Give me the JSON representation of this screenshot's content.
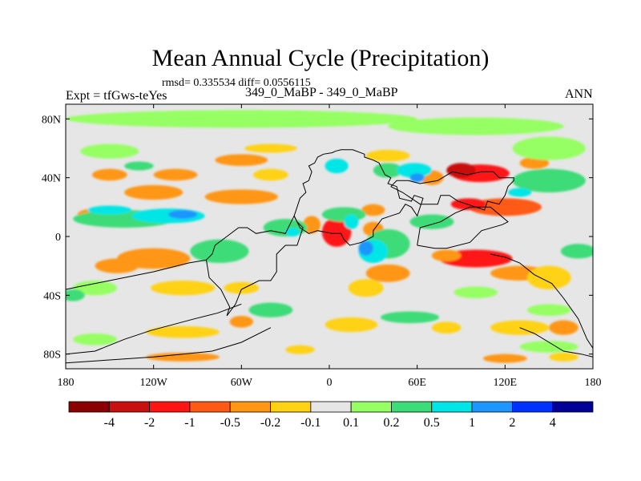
{
  "chart_data": {
    "type": "heatmap",
    "title": "Mean Annual Cycle (Precipitation)",
    "subtitle_stats": "rmsd= 0.335534 diff= 0.0556115",
    "cases": "349_0_MaBP - 349_0_MaBP",
    "experiment": "Expt = tfGws-teYes",
    "season": "ANN",
    "x_axis": {
      "range": [
        -180,
        180
      ],
      "ticks": [
        -180,
        -120,
        -60,
        0,
        60,
        120,
        180
      ],
      "tick_labels": [
        "180",
        "120W",
        "60W",
        "0",
        "60E",
        "120E",
        "180"
      ]
    },
    "y_axis": {
      "range": [
        -90,
        90
      ],
      "ticks": [
        80,
        40,
        0,
        -40,
        -80
      ],
      "tick_labels": [
        "80N",
        "40N",
        "0",
        "40S",
        "80S"
      ]
    },
    "colorbar": {
      "levels": [
        "-4",
        "-2",
        "-1",
        "-0.5",
        "-0.2",
        "-0.1",
        "0.1",
        "0.2",
        "0.5",
        "1",
        "2",
        "4"
      ],
      "colors": [
        "#8b0000",
        "#c81010",
        "#ff1414",
        "#ff5a14",
        "#ff9614",
        "#ffd214",
        "#e6e6e6",
        "#96ff64",
        "#3cdc78",
        "#00e6e6",
        "#1e96ff",
        "#0032ff",
        "#000096"
      ]
    },
    "field_blobs": [
      {
        "lon": 103,
        "lat": 43,
        "rx": 20,
        "ry": 6,
        "value": -1.5
      },
      {
        "lon": 90,
        "lat": 45,
        "rx": 10,
        "ry": 5,
        "value": -3
      },
      {
        "lon": 70,
        "lat": 40,
        "rx": 8,
        "ry": 5,
        "value": -0.5
      },
      {
        "lon": 120,
        "lat": 20,
        "rx": 25,
        "ry": 6,
        "value": -0.6
      },
      {
        "lon": 95,
        "lat": 22,
        "rx": 12,
        "ry": 4,
        "value": -1.2
      },
      {
        "lon": 5,
        "lat": 3,
        "rx": 10,
        "ry": 10,
        "value": -1.5
      },
      {
        "lon": -12,
        "lat": 8,
        "rx": 6,
        "ry": 6,
        "value": -0.5
      },
      {
        "lon": 30,
        "lat": 5,
        "rx": 7,
        "ry": 5,
        "value": -0.5
      },
      {
        "lon": 100,
        "lat": -15,
        "rx": 25,
        "ry": 6,
        "value": -1.3
      },
      {
        "lon": 80,
        "lat": -13,
        "rx": 10,
        "ry": 4,
        "value": -0.5
      },
      {
        "lon": 130,
        "lat": -25,
        "rx": 20,
        "ry": 5,
        "value": -0.5
      },
      {
        "lon": 150,
        "lat": -28,
        "rx": 15,
        "ry": 8,
        "value": -0.15
      },
      {
        "lon": 40,
        "lat": -25,
        "rx": 15,
        "ry": 6,
        "value": -0.5
      },
      {
        "lon": 25,
        "lat": -35,
        "rx": 12,
        "ry": 6,
        "value": -0.15
      },
      {
        "lon": -120,
        "lat": -15,
        "rx": 25,
        "ry": 7,
        "value": -0.5
      },
      {
        "lon": -145,
        "lat": -20,
        "rx": 15,
        "ry": 5,
        "value": -0.3
      },
      {
        "lon": -100,
        "lat": -35,
        "rx": 22,
        "ry": 5,
        "value": -0.15
      },
      {
        "lon": -60,
        "lat": -35,
        "rx": 12,
        "ry": 4,
        "value": -0.15
      },
      {
        "lon": -60,
        "lat": 27,
        "rx": 25,
        "ry": 5,
        "value": -0.5
      },
      {
        "lon": -150,
        "lat": 42,
        "rx": 12,
        "ry": 4,
        "value": -0.5
      },
      {
        "lon": -105,
        "lat": 42,
        "rx": 15,
        "ry": 4,
        "value": -0.5
      },
      {
        "lon": -40,
        "lat": 42,
        "rx": 12,
        "ry": 4,
        "value": -0.15
      },
      {
        "lon": -120,
        "lat": 30,
        "rx": 20,
        "ry": 5,
        "value": -0.5
      },
      {
        "lon": -160,
        "lat": 15,
        "rx": 12,
        "ry": 4,
        "value": -0.5
      },
      {
        "lon": -60,
        "lat": 52,
        "rx": 18,
        "ry": 4,
        "value": -0.5
      },
      {
        "lon": 30,
        "lat": 18,
        "rx": 8,
        "ry": 4,
        "value": -0.5
      },
      {
        "lon": -40,
        "lat": 60,
        "rx": 18,
        "ry": 3,
        "value": -0.15
      },
      {
        "lon": -100,
        "lat": -65,
        "rx": 25,
        "ry": 4,
        "value": -0.15
      },
      {
        "lon": -60,
        "lat": -58,
        "rx": 8,
        "ry": 4,
        "value": -0.5
      },
      {
        "lon": 15,
        "lat": -60,
        "rx": 18,
        "ry": 5,
        "value": -0.15
      },
      {
        "lon": 80,
        "lat": -62,
        "rx": 10,
        "ry": 4,
        "value": -0.15
      },
      {
        "lon": 130,
        "lat": -62,
        "rx": 20,
        "ry": 5,
        "value": -0.15
      },
      {
        "lon": 160,
        "lat": -62,
        "rx": 10,
        "ry": 5,
        "value": -0.5
      },
      {
        "lon": -100,
        "lat": -82,
        "rx": 25,
        "ry": 3,
        "value": -0.5
      },
      {
        "lon": 120,
        "lat": -83,
        "rx": 15,
        "ry": 3,
        "value": -0.5
      },
      {
        "lon": 160,
        "lat": -82,
        "rx": 10,
        "ry": 3,
        "value": -0.15
      },
      {
        "lon": -20,
        "lat": -77,
        "rx": 10,
        "ry": 3,
        "value": -0.15
      },
      {
        "lon": 40,
        "lat": 55,
        "rx": 15,
        "ry": 4,
        "value": -0.15
      },
      {
        "lon": 140,
        "lat": 50,
        "rx": 10,
        "ry": 4,
        "value": -0.5
      },
      {
        "lon": -140,
        "lat": 12,
        "rx": 35,
        "ry": 6,
        "value": 0.3
      },
      {
        "lon": -110,
        "lat": 14,
        "rx": 25,
        "ry": 5,
        "value": 0.7
      },
      {
        "lon": -150,
        "lat": 18,
        "rx": 15,
        "ry": 3,
        "value": 0.7
      },
      {
        "lon": -100,
        "lat": 15,
        "rx": 10,
        "ry": 3,
        "value": 1.5
      },
      {
        "lon": -30,
        "lat": 6,
        "rx": 15,
        "ry": 6,
        "value": 0.3
      },
      {
        "lon": -25,
        "lat": 3,
        "rx": 5,
        "ry": 3,
        "value": 0.7
      },
      {
        "lon": 10,
        "lat": 15,
        "rx": 15,
        "ry": 5,
        "value": 0.3
      },
      {
        "lon": 15,
        "lat": 10,
        "rx": 5,
        "ry": 5,
        "value": 0.7
      },
      {
        "lon": 40,
        "lat": -5,
        "rx": 15,
        "ry": 10,
        "value": 0.3
      },
      {
        "lon": 30,
        "lat": -10,
        "rx": 10,
        "ry": 8,
        "value": 0.7
      },
      {
        "lon": 25,
        "lat": -8,
        "rx": 5,
        "ry": 5,
        "value": 1.5
      },
      {
        "lon": 70,
        "lat": 10,
        "rx": 15,
        "ry": 5,
        "value": 0.3
      },
      {
        "lon": 40,
        "lat": 45,
        "rx": 10,
        "ry": 5,
        "value": 0.3
      },
      {
        "lon": 58,
        "lat": 45,
        "rx": 12,
        "ry": 5,
        "value": 0.7
      },
      {
        "lon": 60,
        "lat": 40,
        "rx": 5,
        "ry": 3,
        "value": 1.5
      },
      {
        "lon": 5,
        "lat": 48,
        "rx": 8,
        "ry": 5,
        "value": 0.7
      },
      {
        "lon": 150,
        "lat": 38,
        "rx": 25,
        "ry": 8,
        "value": 0.3
      },
      {
        "lon": 130,
        "lat": 30,
        "rx": 8,
        "ry": 3,
        "value": 0.7
      },
      {
        "lon": 170,
        "lat": -10,
        "rx": 12,
        "ry": 5,
        "value": 0.3
      },
      {
        "lon": -60,
        "lat": 80,
        "rx": 120,
        "ry": 6,
        "value": 0.15
      },
      {
        "lon": 100,
        "lat": 75,
        "rx": 60,
        "ry": 6,
        "value": 0.15
      },
      {
        "lon": 150,
        "lat": 60,
        "rx": 25,
        "ry": 8,
        "value": 0.15
      },
      {
        "lon": -150,
        "lat": 58,
        "rx": 20,
        "ry": 5,
        "value": 0.15
      },
      {
        "lon": -75,
        "lat": -10,
        "rx": 20,
        "ry": 8,
        "value": 0.3
      },
      {
        "lon": -160,
        "lat": -35,
        "rx": 15,
        "ry": 5,
        "value": 0.15
      },
      {
        "lon": -40,
        "lat": -50,
        "rx": 15,
        "ry": 5,
        "value": 0.3
      },
      {
        "lon": 55,
        "lat": -55,
        "rx": 20,
        "ry": 4,
        "value": 0.3
      },
      {
        "lon": 150,
        "lat": -50,
        "rx": 15,
        "ry": 4,
        "value": 0.15
      },
      {
        "lon": 150,
        "lat": -75,
        "rx": 20,
        "ry": 4,
        "value": 0.15
      },
      {
        "lon": -160,
        "lat": -70,
        "rx": 15,
        "ry": 4,
        "value": 0.15
      },
      {
        "lon": -175,
        "lat": -40,
        "rx": 8,
        "ry": 4,
        "value": 0.3
      },
      {
        "lon": 100,
        "lat": -38,
        "rx": 15,
        "ry": 4,
        "value": 0.15
      },
      {
        "lon": -130,
        "lat": 48,
        "rx": 10,
        "ry": 3,
        "value": 0.3
      }
    ],
    "continents": [
      [
        [
          2,
          57
        ],
        [
          4,
          58
        ],
        [
          8,
          59
        ],
        [
          16,
          59
        ],
        [
          24,
          56
        ],
        [
          24,
          54
        ],
        [
          30,
          52
        ],
        [
          34,
          50
        ],
        [
          36,
          46
        ],
        [
          38,
          42
        ],
        [
          42,
          40
        ],
        [
          40,
          36
        ],
        [
          46,
          34
        ],
        [
          48,
          26
        ],
        [
          56,
          24
        ],
        [
          58,
          28
        ],
        [
          64,
          26
        ],
        [
          60,
          14
        ],
        [
          56,
          20
        ],
        [
          52,
          22
        ],
        [
          48,
          16
        ],
        [
          42,
          14
        ],
        [
          36,
          12
        ],
        [
          30,
          4
        ],
        [
          30,
          0
        ],
        [
          22,
          -4
        ],
        [
          14,
          -6
        ],
        [
          10,
          -2
        ],
        [
          8,
          2
        ],
        [
          2,
          2
        ],
        [
          -8,
          4
        ],
        [
          -14,
          2
        ],
        [
          -20,
          6
        ],
        [
          -24,
          14
        ],
        [
          -22,
          20
        ],
        [
          -20,
          26
        ],
        [
          -16,
          30
        ],
        [
          -18,
          36
        ],
        [
          -14,
          38
        ],
        [
          -12,
          44
        ],
        [
          -14,
          48
        ],
        [
          -10,
          50
        ],
        [
          -8,
          54
        ],
        [
          -4,
          56
        ],
        [
          2,
          57
        ]
      ],
      [
        [
          42,
          34
        ],
        [
          50,
          30
        ],
        [
          62,
          22
        ],
        [
          74,
          22
        ],
        [
          76,
          28
        ],
        [
          82,
          28
        ],
        [
          88,
          24
        ],
        [
          100,
          20
        ],
        [
          106,
          18
        ],
        [
          108,
          24
        ],
        [
          116,
          22
        ],
        [
          120,
          28
        ],
        [
          122,
          34
        ],
        [
          126,
          38
        ],
        [
          126,
          40
        ],
        [
          116,
          40
        ],
        [
          112,
          44
        ],
        [
          104,
          44
        ],
        [
          94,
          42
        ],
        [
          84,
          44
        ],
        [
          74,
          38
        ],
        [
          62,
          36
        ],
        [
          54,
          38
        ],
        [
          46,
          38
        ],
        [
          42,
          34
        ]
      ],
      [
        [
          -24,
          14
        ],
        [
          -22,
          10
        ],
        [
          -18,
          6
        ],
        [
          -22,
          -6
        ],
        [
          -30,
          -6
        ],
        [
          -36,
          -12
        ],
        [
          -36,
          -24
        ],
        [
          -40,
          -30
        ],
        [
          -48,
          -30
        ],
        [
          -60,
          -36
        ],
        [
          -64,
          -46
        ],
        [
          -70,
          -54
        ],
        [
          -68,
          -48
        ],
        [
          -74,
          -36
        ],
        [
          -82,
          -28
        ],
        [
          -84,
          -16
        ],
        [
          -80,
          -12
        ],
        [
          -78,
          -6
        ],
        [
          -70,
          0
        ],
        [
          -62,
          6
        ],
        [
          -56,
          6
        ],
        [
          -50,
          2
        ],
        [
          -40,
          4
        ],
        [
          -30,
          2
        ],
        [
          -24,
          14
        ]
      ],
      [
        [
          -84,
          -16
        ],
        [
          -96,
          -18
        ],
        [
          -120,
          -24
        ],
        [
          -150,
          -30
        ],
        [
          -170,
          -34
        ],
        [
          -180,
          -36
        ]
      ],
      [
        [
          -60,
          -46
        ],
        [
          -76,
          -52
        ],
        [
          -92,
          -56
        ],
        [
          -122,
          -64
        ],
        [
          -140,
          -70
        ],
        [
          -160,
          -78
        ],
        [
          -180,
          -80
        ]
      ],
      [
        [
          -40,
          -62
        ],
        [
          -60,
          -72
        ],
        [
          -80,
          -78
        ],
        [
          -100,
          -80
        ],
        [
          -120,
          -82
        ],
        [
          -150,
          -84
        ],
        [
          -180,
          -86
        ]
      ],
      [
        [
          60,
          -6
        ],
        [
          72,
          -8
        ],
        [
          80,
          -8
        ],
        [
          96,
          -4
        ],
        [
          104,
          4
        ],
        [
          118,
          8
        ],
        [
          122,
          10
        ],
        [
          110,
          20
        ],
        [
          96,
          20
        ],
        [
          86,
          16
        ],
        [
          76,
          10
        ],
        [
          62,
          6
        ],
        [
          60,
          -6
        ]
      ],
      [
        [
          110,
          -12
        ],
        [
          120,
          -14
        ],
        [
          130,
          -18
        ],
        [
          140,
          -26
        ],
        [
          152,
          -32
        ],
        [
          160,
          -42
        ],
        [
          170,
          -56
        ],
        [
          176,
          -70
        ],
        [
          180,
          -76
        ]
      ],
      [
        [
          130,
          -62
        ],
        [
          140,
          -66
        ],
        [
          150,
          -72
        ],
        [
          160,
          -78
        ],
        [
          172,
          -80
        ],
        [
          180,
          -82
        ]
      ]
    ]
  }
}
